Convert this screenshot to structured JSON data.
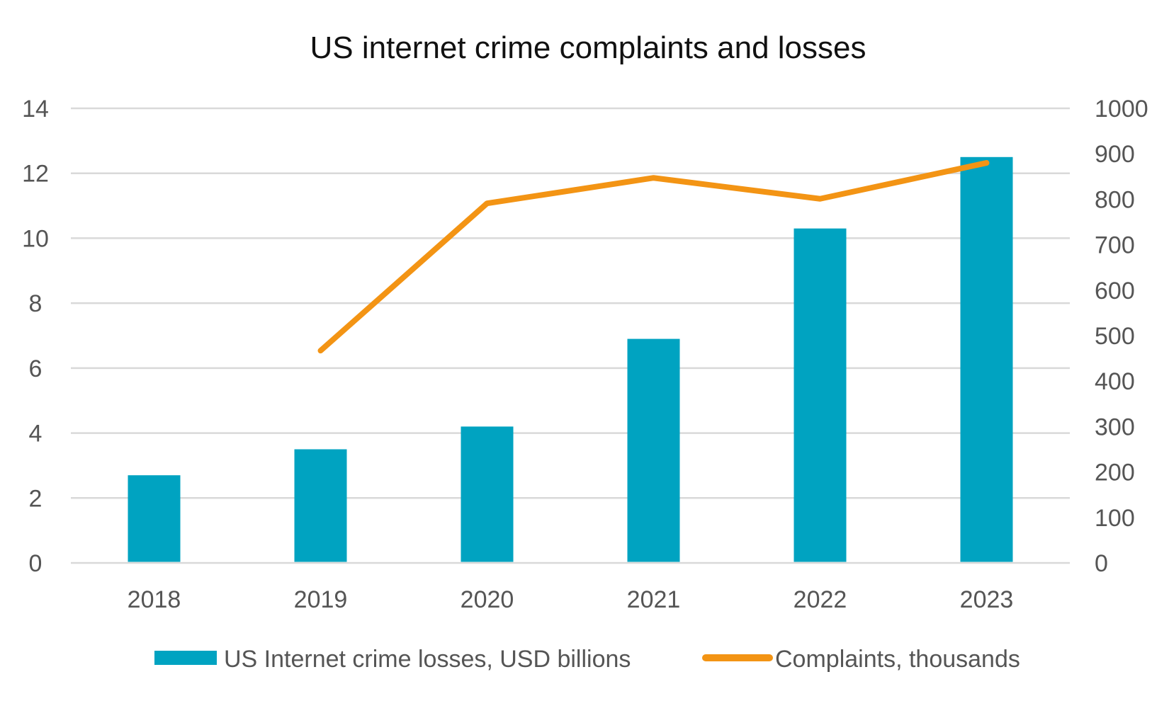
{
  "chart_data": {
    "type": "bar",
    "title": "US internet crime complaints and losses",
    "categories": [
      "2018",
      "2019",
      "2020",
      "2021",
      "2022",
      "2023"
    ],
    "series": [
      {
        "name": "US Internet crime losses, USD billions",
        "type": "bar",
        "axis": "left",
        "color": "#00a3c1",
        "values": [
          2.7,
          3.5,
          4.2,
          6.9,
          10.3,
          12.5
        ]
      },
      {
        "name": "Complaints, thousands",
        "type": "line",
        "axis": "right",
        "color": "#f39414",
        "values": [
          null,
          467,
          791,
          847,
          801,
          880
        ]
      }
    ],
    "y_left": {
      "min": 0,
      "max": 14,
      "ticks": [
        "0",
        "2",
        "4",
        "6",
        "8",
        "10",
        "12",
        "14"
      ]
    },
    "y_right": {
      "min": 0,
      "max": 1000,
      "ticks": [
        "0",
        "100",
        "200",
        "300",
        "400",
        "500",
        "600",
        "700",
        "800",
        "900",
        "1000"
      ]
    },
    "grid": true,
    "legend_position": "bottom"
  }
}
